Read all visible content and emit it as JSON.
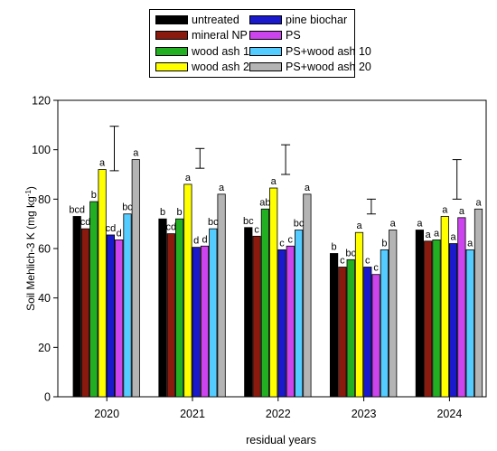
{
  "chart_data": {
    "type": "bar",
    "xlabel": "residual years",
    "ylabel_prefix": "Soil Mehlich-3 K (mg kg",
    "ylabel_sup": "-1",
    "ylabel_suffix": ")",
    "ylim": [
      0,
      120
    ],
    "yticks": [
      0,
      20,
      40,
      60,
      80,
      100,
      120
    ],
    "categories": [
      "2020",
      "2021",
      "2022",
      "2023",
      "2024"
    ],
    "legend_position": "top-center",
    "series": [
      {
        "name": "untreated",
        "color": "#000000",
        "values": [
          73,
          72,
          68.5,
          58,
          67.5
        ],
        "letters": [
          "bcd",
          "b",
          "bc",
          "b",
          "a"
        ]
      },
      {
        "name": "mineral NP",
        "color": "#8b1a0e",
        "values": [
          68,
          66,
          65,
          52.5,
          63
        ],
        "letters": [
          "cd",
          "cd",
          "c",
          "c",
          "a"
        ]
      },
      {
        "name": "wood ash 10",
        "color": "#22b022",
        "values": [
          79,
          72,
          76,
          55.5,
          63.5
        ],
        "letters": [
          "b",
          "b",
          "ab",
          "bc",
          "a"
        ]
      },
      {
        "name": "wood ash 20",
        "color": "#ffff00",
        "values": [
          92,
          86,
          84.5,
          66.5,
          73
        ],
        "letters": [
          "a",
          "a",
          "a",
          "a",
          "a"
        ]
      },
      {
        "name": "pine biochar",
        "color": "#1a1acc",
        "values": [
          65.5,
          60.5,
          59.5,
          52.5,
          62
        ],
        "letters": [
          "cd",
          "d",
          "c",
          "c",
          "a"
        ]
      },
      {
        "name": "PS",
        "color": "#cc44ee",
        "values": [
          63.5,
          61,
          61,
          49.5,
          72.5
        ],
        "letters": [
          "d",
          "d",
          "c",
          "c",
          "a"
        ]
      },
      {
        "name": "PS+wood ash 10",
        "color": "#55ccff",
        "values": [
          74,
          68,
          67.5,
          59.5,
          59.5
        ],
        "letters": [
          "bc",
          "bc",
          "bc",
          "b",
          "a"
        ]
      },
      {
        "name": "PS+wood ash 20",
        "color": "#b4b4b4",
        "values": [
          96,
          82,
          82,
          67.5,
          76
        ],
        "letters": [
          "a",
          "a",
          "a",
          "a",
          "a"
        ]
      }
    ],
    "error_bars": [
      {
        "center": 100.5,
        "half": 9
      },
      {
        "center": 96.5,
        "half": 4
      },
      {
        "center": 96,
        "half": 6
      },
      {
        "center": 77,
        "half": 3
      },
      {
        "center": 88,
        "half": 8
      }
    ]
  }
}
